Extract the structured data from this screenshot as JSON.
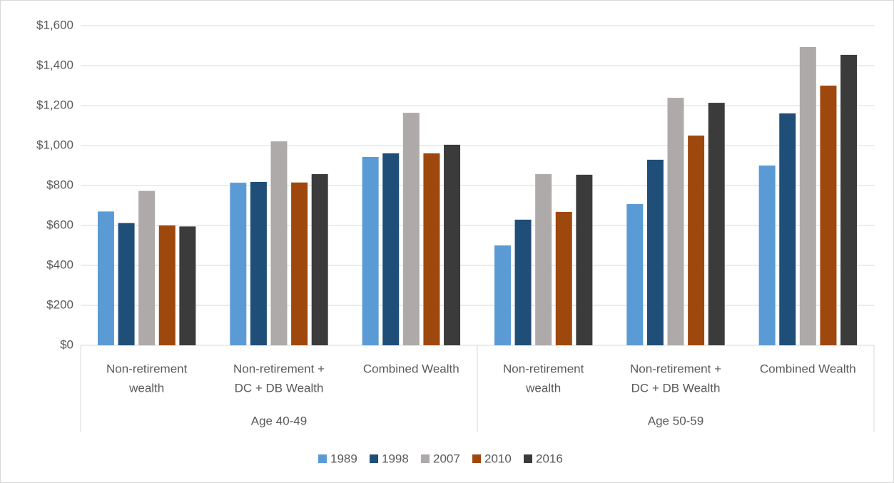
{
  "chart_data": {
    "type": "bar",
    "groups": [
      {
        "name": "Age 40-49",
        "categories": [
          [
            "Non-retirement",
            "wealth"
          ],
          [
            "Non-retirement +",
            "DC + DB Wealth"
          ],
          [
            "Combined Wealth"
          ]
        ]
      },
      {
        "name": "Age 50-59",
        "categories": [
          [
            "Non-retirement",
            "wealth"
          ],
          [
            "Non-retirement +",
            "DC + DB Wealth"
          ],
          [
            "Combined Wealth"
          ]
        ]
      }
    ],
    "series": [
      {
        "name": "1989",
        "color": "#5b9bd5",
        "values": [
          670,
          814,
          943,
          500,
          707,
          900
        ]
      },
      {
        "name": "1998",
        "color": "#1f4e79",
        "values": [
          612,
          818,
          961,
          629,
          929,
          1161
        ]
      },
      {
        "name": "2007",
        "color": "#aeaaaa",
        "values": [
          773,
          1021,
          1164,
          857,
          1239,
          1493
        ]
      },
      {
        "name": "2010",
        "color": "#9e480e",
        "values": [
          600,
          815,
          961,
          668,
          1050,
          1300
        ]
      },
      {
        "name": "2016",
        "color": "#3b3b3b",
        "values": [
          595,
          857,
          1004,
          854,
          1214,
          1454
        ]
      }
    ],
    "ylim": [
      0,
      1600
    ],
    "yticks": [
      {
        "value": 0,
        "label": "$0"
      },
      {
        "value": 200,
        "label": "$200"
      },
      {
        "value": 400,
        "label": "$400"
      },
      {
        "value": 600,
        "label": "$600"
      },
      {
        "value": 800,
        "label": "$800"
      },
      {
        "value": 1000,
        "label": "$1,000"
      },
      {
        "value": 1200,
        "label": "$1,200"
      },
      {
        "value": 1400,
        "label": "$1,400"
      },
      {
        "value": 1600,
        "label": "$1,600"
      }
    ],
    "grid": true,
    "legend": "bottom"
  }
}
